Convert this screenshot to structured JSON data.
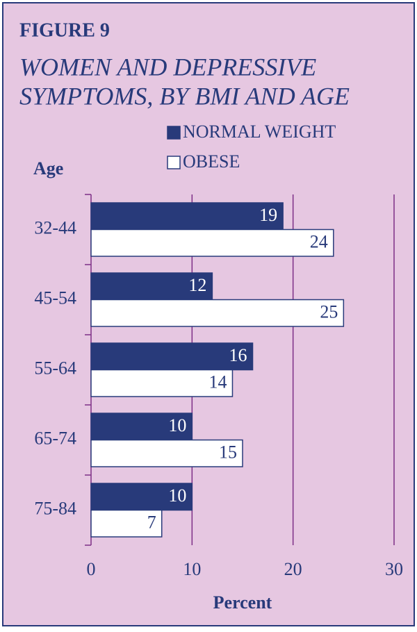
{
  "chart_data": {
    "type": "hbar",
    "title": "FIGURE 9",
    "subtitle": [
      "WOMEN AND DEPRESSIVE",
      "SYMPTOMS, BY BMI AND AGE"
    ],
    "y_label": "Age",
    "x_label": "Percent",
    "categories": [
      "32-44",
      "45-54",
      "55-64",
      "65-74",
      "75-84"
    ],
    "series": [
      {
        "name": "NORMAL WEIGHT",
        "color": "#283a7a",
        "values": [
          19,
          12,
          16,
          10,
          10
        ]
      },
      {
        "name": "OBESE",
        "color": "#ffffff",
        "values": [
          24,
          25,
          14,
          15,
          7
        ]
      }
    ],
    "xlim": [
      0,
      30
    ],
    "xticks": [
      0,
      10,
      20,
      30
    ],
    "grid": true
  }
}
